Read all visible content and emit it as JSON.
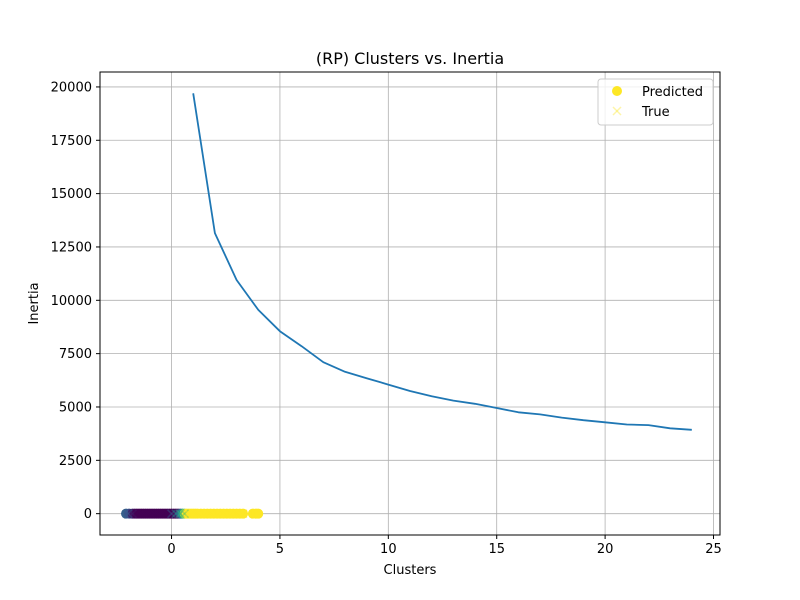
{
  "chart_data": {
    "type": "line",
    "title": "(RP) Clusters vs. Inertia",
    "xlabel": "Clusters",
    "ylabel": "Inertia",
    "xlim": [
      -3.3,
      25.3
    ],
    "ylim": [
      -1000,
      20700
    ],
    "xticks": [
      0,
      5,
      10,
      15,
      20,
      25
    ],
    "yticks": [
      0,
      2500,
      5000,
      7500,
      10000,
      12500,
      15000,
      17500,
      20000
    ],
    "grid": true,
    "legend": {
      "placement": "top-right",
      "entries": [
        {
          "label": "Predicted",
          "marker": "circle",
          "color": "#fde725"
        },
        {
          "label": "True",
          "marker": "x",
          "color": "#fde725"
        }
      ]
    },
    "series": [
      {
        "type": "line",
        "color": "#1f77b4",
        "x": [
          1,
          2,
          3,
          4,
          5,
          6,
          7,
          8,
          9,
          10,
          11,
          12,
          13,
          14,
          15,
          16,
          17,
          18,
          19,
          20,
          21,
          22,
          23,
          24
        ],
        "y": [
          19700,
          13150,
          10950,
          9550,
          8550,
          7850,
          7100,
          6650,
          6350,
          6050,
          5750,
          5500,
          5300,
          5150,
          4950,
          4750,
          4650,
          4500,
          4380,
          4280,
          4180,
          4150,
          4000,
          3930
        ]
      }
    ],
    "scatter": {
      "y": 0,
      "colormap": "viridis",
      "predicted_x": [
        -2.1,
        -1.95,
        -1.8,
        -1.7,
        -1.6,
        -1.5,
        -1.4,
        -1.3,
        -1.2,
        -1.1,
        -1.0,
        -0.9,
        -0.8,
        -0.7,
        -0.6,
        -0.5,
        -0.4,
        -0.3,
        -0.2,
        -0.1,
        0.0,
        0.1,
        0.2,
        0.3,
        0.4,
        0.5,
        0.6,
        0.7,
        0.8,
        0.9,
        1.0,
        1.1,
        1.2,
        1.35,
        1.5,
        1.65,
        1.8,
        1.95,
        2.1,
        2.25,
        2.4,
        2.55,
        2.7,
        2.85,
        3.0,
        3.15,
        3.3,
        3.75,
        3.9,
        4.0
      ],
      "predicted_c": [
        0.3,
        0.25,
        0.1,
        0.05,
        0,
        0,
        0,
        0,
        0,
        0,
        0,
        0,
        0,
        0,
        0,
        0,
        0,
        0,
        0,
        0,
        0,
        0,
        0,
        0.05,
        0.2,
        0.5,
        0.8,
        1,
        1,
        1,
        1,
        1,
        1,
        1,
        1,
        1,
        1,
        1,
        1,
        1,
        1,
        1,
        1,
        1,
        1,
        1,
        1,
        1,
        1,
        1
      ],
      "true_x": [
        -2.0,
        -1.8,
        -1.6,
        -1.4,
        -1.2,
        -1.0,
        -0.8,
        -0.6,
        -0.4,
        -0.2,
        0.0,
        0.2,
        0.4,
        0.6,
        0.8,
        1.0,
        1.2,
        1.5,
        1.8,
        2.1,
        2.4,
        2.7,
        3.0,
        3.3,
        3.8
      ],
      "true_c": [
        0.3,
        0.1,
        0,
        0,
        0,
        0,
        0,
        0,
        0,
        0,
        0.3,
        0.5,
        0.6,
        0.7,
        1,
        1,
        1,
        1,
        1,
        1,
        1,
        1,
        1,
        1,
        1
      ]
    }
  }
}
